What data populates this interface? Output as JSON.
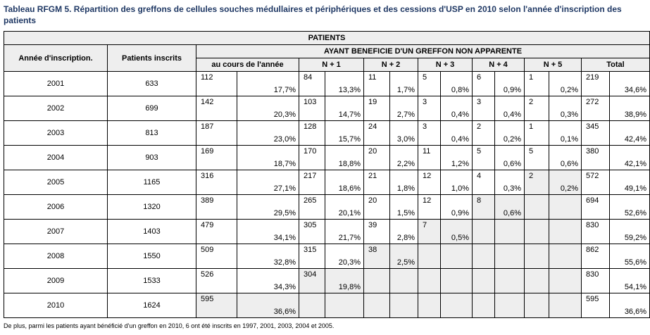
{
  "title": "Tableau RFGM 5. Répartition des greffons de cellules souches médullaires et périphériques et des cessions d'USP en 2010 selon l'année d'inscription des patients",
  "headers": {
    "patients": "PATIENTS",
    "annee": "Année d'inscription.",
    "inscrits": "Patients inscrits",
    "ayant": "AYANT BENEFICIE D'UN GREFFON NON APPARENTE",
    "cols": [
      "au cours de l'année",
      "N + 1",
      "N + 2",
      "N + 3",
      "N + 4",
      "N + 5",
      "Total"
    ]
  },
  "rows": [
    {
      "year": "2001",
      "inscrits": "633",
      "cells": [
        [
          "112",
          "17,7%"
        ],
        [
          "84",
          "13,3%"
        ],
        [
          "11",
          "1,7%"
        ],
        [
          "5",
          "0,8%"
        ],
        [
          "6",
          "0,9%"
        ],
        [
          "1",
          "0,2%"
        ],
        [
          "219",
          "34,6%"
        ]
      ]
    },
    {
      "year": "2002",
      "inscrits": "699",
      "cells": [
        [
          "142",
          "20,3%"
        ],
        [
          "103",
          "14,7%"
        ],
        [
          "19",
          "2,7%"
        ],
        [
          "3",
          "0,4%"
        ],
        [
          "3",
          "0,4%"
        ],
        [
          "2",
          "0,3%"
        ],
        [
          "272",
          "38,9%"
        ]
      ]
    },
    {
      "year": "2003",
      "inscrits": "813",
      "cells": [
        [
          "187",
          "23,0%"
        ],
        [
          "128",
          "15,7%"
        ],
        [
          "24",
          "3,0%"
        ],
        [
          "3",
          "0,4%"
        ],
        [
          "2",
          "0,2%"
        ],
        [
          "1",
          "0,1%"
        ],
        [
          "345",
          "42,4%"
        ]
      ]
    },
    {
      "year": "2004",
      "inscrits": "903",
      "cells": [
        [
          "169",
          "18,7%"
        ],
        [
          "170",
          "18,8%"
        ],
        [
          "20",
          "2,2%"
        ],
        [
          "11",
          "1,2%"
        ],
        [
          "5",
          "0,6%"
        ],
        [
          "5",
          "0,6%"
        ],
        [
          "380",
          "42,1%"
        ]
      ]
    },
    {
      "year": "2005",
      "inscrits": "1165",
      "cells": [
        [
          "316",
          "27,1%"
        ],
        [
          "217",
          "18,6%"
        ],
        [
          "21",
          "1,8%"
        ],
        [
          "12",
          "1,0%"
        ],
        [
          "4",
          "0,3%"
        ],
        [
          "2",
          "0,2%"
        ],
        [
          "572",
          "49,1%"
        ]
      ]
    },
    {
      "year": "2006",
      "inscrits": "1320",
      "cells": [
        [
          "389",
          "29,5%"
        ],
        [
          "265",
          "20,1%"
        ],
        [
          "20",
          "1,5%"
        ],
        [
          "12",
          "0,9%"
        ],
        [
          "8",
          "0,6%"
        ],
        null,
        [
          "694",
          "52,6%"
        ]
      ]
    },
    {
      "year": "2007",
      "inscrits": "1403",
      "cells": [
        [
          "479",
          "34,1%"
        ],
        [
          "305",
          "21,7%"
        ],
        [
          "39",
          "2,8%"
        ],
        [
          "7",
          "0,5%"
        ],
        null,
        null,
        [
          "830",
          "59,2%"
        ]
      ]
    },
    {
      "year": "2008",
      "inscrits": "1550",
      "cells": [
        [
          "509",
          "32,8%"
        ],
        [
          "315",
          "20,3%"
        ],
        [
          "38",
          "2,5%"
        ],
        null,
        null,
        null,
        [
          "862",
          "55,6%"
        ]
      ]
    },
    {
      "year": "2009",
      "inscrits": "1533",
      "cells": [
        [
          "526",
          "34,3%"
        ],
        [
          "304",
          "19,8%"
        ],
        null,
        null,
        null,
        null,
        [
          "830",
          "54,1%"
        ]
      ]
    },
    {
      "year": "2010",
      "inscrits": "1624",
      "cells": [
        [
          "595",
          "36,6%"
        ],
        null,
        null,
        null,
        null,
        null,
        [
          "595",
          "36,6%"
        ]
      ]
    }
  ],
  "footnote": "De plus, parmi les patients ayant bénéficié d'un greffon en 2010, 6 ont été inscrits en 1997, 2001, 2003, 2004 et 2005."
}
